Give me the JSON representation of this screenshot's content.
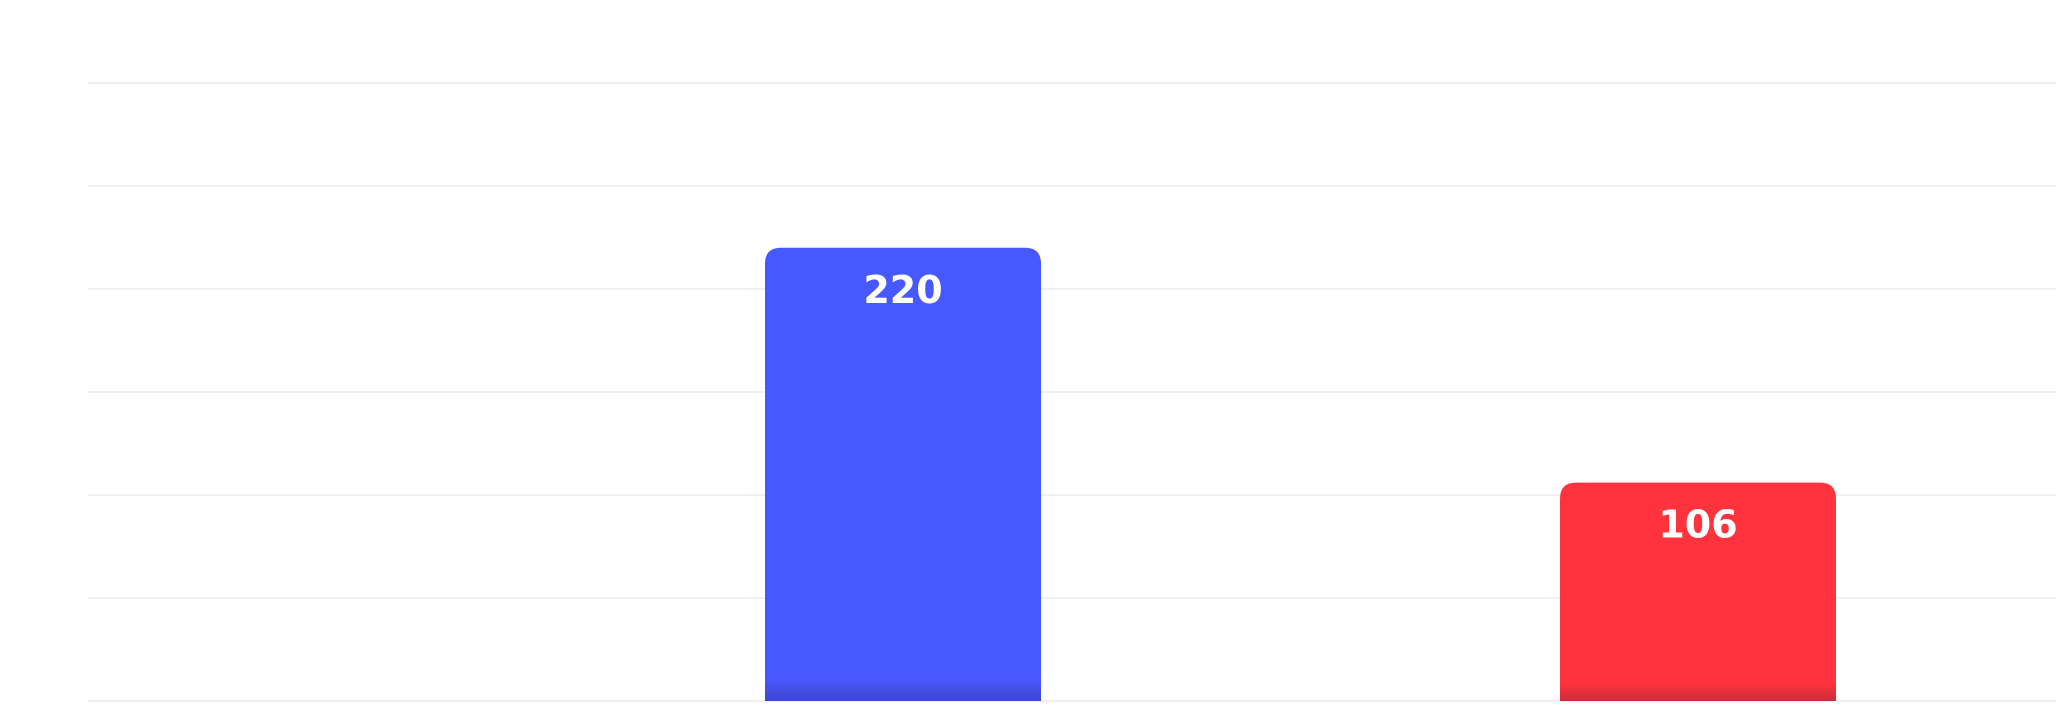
{
  "chart_data": {
    "type": "bar",
    "title": "",
    "xlabel": "",
    "ylabel": "",
    "categories": [
      "",
      ""
    ],
    "values": [
      220,
      106
    ],
    "labels": [
      "220",
      "106"
    ],
    "colors": [
      "#4858ff",
      "#ff333d"
    ],
    "ylim": [
      0,
      300
    ],
    "gridlines": [
      0,
      50,
      100,
      150,
      200,
      250,
      300
    ],
    "grid": true,
    "legend": "none"
  }
}
